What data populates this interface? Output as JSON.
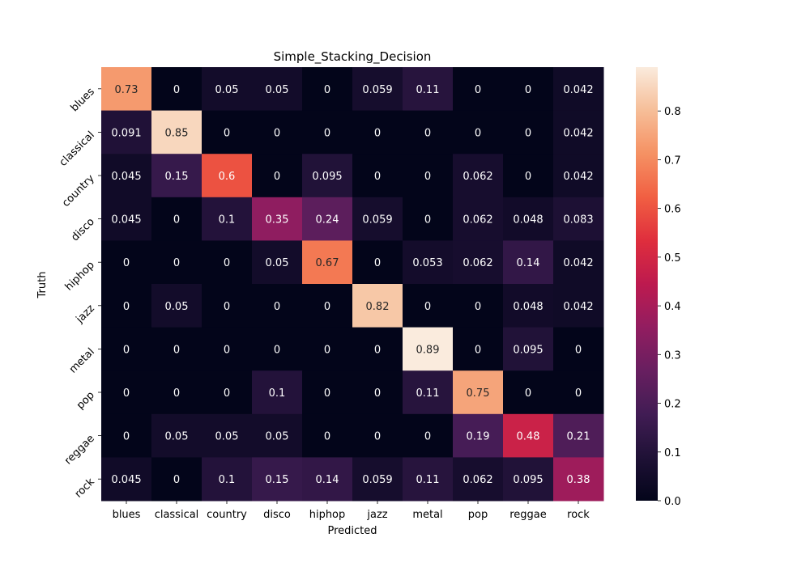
{
  "chart_data": {
    "type": "heatmap",
    "title": "Simple_Stacking_Decision",
    "xlabel": "Predicted",
    "ylabel": "Truth",
    "x_categories": [
      "blues",
      "classical",
      "country",
      "disco",
      "hiphop",
      "jazz",
      "metal",
      "pop",
      "reggae",
      "rock"
    ],
    "y_categories": [
      "blues",
      "classical",
      "country",
      "disco",
      "hiphop",
      "jazz",
      "metal",
      "pop",
      "reggae",
      "rock"
    ],
    "values": [
      [
        0.73,
        0,
        0.05,
        0.05,
        0,
        0.059,
        0.11,
        0,
        0,
        0.042
      ],
      [
        0.091,
        0.85,
        0,
        0,
        0,
        0,
        0,
        0,
        0,
        0.042
      ],
      [
        0.045,
        0.15,
        0.6,
        0,
        0.095,
        0,
        0,
        0.062,
        0,
        0.042
      ],
      [
        0.045,
        0,
        0.1,
        0.35,
        0.24,
        0.059,
        0,
        0.062,
        0.048,
        0.083
      ],
      [
        0,
        0,
        0,
        0.05,
        0.67,
        0,
        0.053,
        0.062,
        0.14,
        0.042
      ],
      [
        0,
        0.05,
        0,
        0,
        0,
        0.82,
        0,
        0,
        0.048,
        0.042
      ],
      [
        0,
        0,
        0,
        0,
        0,
        0,
        0.89,
        0,
        0.095,
        0
      ],
      [
        0,
        0,
        0,
        0.1,
        0,
        0,
        0.11,
        0.75,
        0,
        0
      ],
      [
        0,
        0.05,
        0.05,
        0.05,
        0,
        0,
        0,
        0.19,
        0.48,
        0.21
      ],
      [
        0.045,
        0,
        0.1,
        0.15,
        0.14,
        0.059,
        0.11,
        0.062,
        0.095,
        0.38
      ]
    ],
    "colorbar": {
      "min": 0,
      "max": 0.89,
      "ticks": [
        0.0,
        0.1,
        0.2,
        0.3,
        0.4,
        0.5,
        0.6,
        0.7,
        0.8
      ],
      "tick_labels": [
        "0.0",
        "0.1",
        "0.2",
        "0.3",
        "0.4",
        "0.5",
        "0.6",
        "0.7",
        "0.8"
      ]
    },
    "colormap": "rocket",
    "legend": "colorbar-right"
  }
}
